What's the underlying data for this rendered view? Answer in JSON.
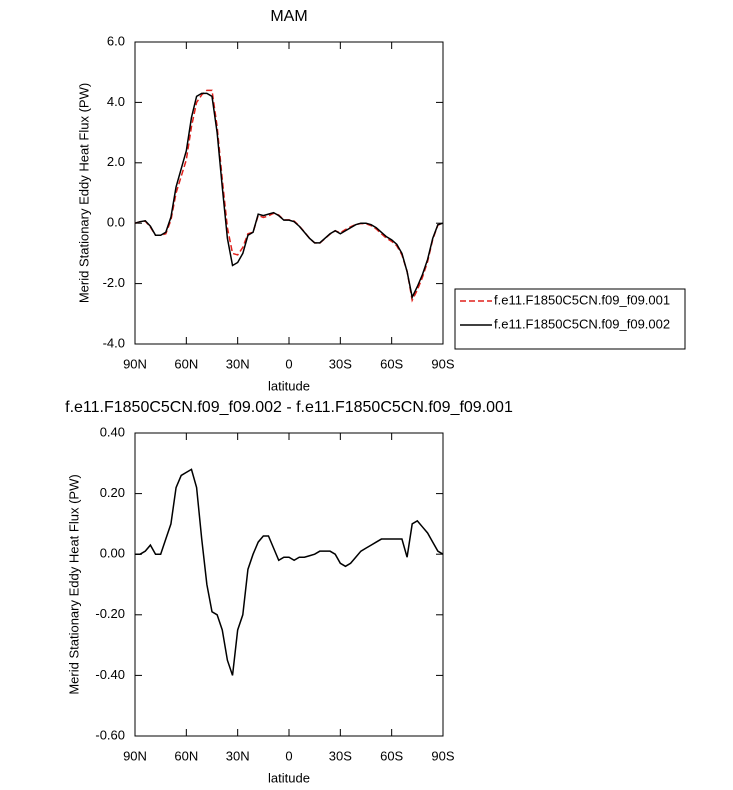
{
  "chart_data": [
    {
      "type": "line",
      "title": "MAM",
      "xlabel": "latitude",
      "ylabel": "Merid Stationary Eddy Heat Flux (PW)",
      "x": [
        90,
        87,
        84,
        81,
        78,
        75,
        72,
        69,
        66,
        63,
        60,
        57,
        54,
        51,
        48,
        45,
        42,
        39,
        36,
        33,
        30,
        27,
        24,
        21,
        18,
        15,
        12,
        9,
        6,
        3,
        0,
        -3,
        -6,
        -9,
        -12,
        -15,
        -18,
        -21,
        -24,
        -27,
        -30,
        -33,
        -36,
        -39,
        -42,
        -45,
        -48,
        -51,
        -54,
        -57,
        -60,
        -63,
        -66,
        -69,
        -72,
        -75,
        -78,
        -81,
        -84,
        -87,
        -90
      ],
      "xlim": [
        90,
        -90
      ],
      "xticks": [
        {
          "value": 90,
          "label": "90N"
        },
        {
          "value": 60,
          "label": "60N"
        },
        {
          "value": 30,
          "label": "30N"
        },
        0,
        {
          "value": -30,
          "label": "30S"
        },
        {
          "value": -60,
          "label": "60S"
        },
        {
          "value": -90,
          "label": "90S"
        }
      ],
      "ylim": [
        -4,
        6
      ],
      "yticks": [
        {
          "value": -4,
          "label": "-4.0"
        },
        {
          "value": -2,
          "label": "-2.0"
        },
        {
          "value": 0,
          "label": "0.0"
        },
        {
          "value": 2,
          "label": "2.0"
        },
        {
          "value": 4,
          "label": "4.0"
        },
        {
          "value": 6,
          "label": "6.0"
        }
      ],
      "legend": "right",
      "series": [
        {
          "name": "f.e11.F1850C5CN.f09_f09.001",
          "color": "#e0201b",
          "dash": true,
          "values": [
            0,
            0.05,
            0.07,
            -0.13,
            -0.4,
            -0.4,
            -0.35,
            0.1,
            1.0,
            1.55,
            2.1,
            3.2,
            4.0,
            4.25,
            4.4,
            4.4,
            3.2,
            1.45,
            -0.15,
            -1.0,
            -1.05,
            -0.8,
            -0.35,
            -0.3,
            0.26,
            0.19,
            0.24,
            0.33,
            0.27,
            0.11,
            0.11,
            0.07,
            -0.09,
            -0.29,
            -0.5,
            -0.65,
            -0.66,
            -0.51,
            -0.36,
            -0.25,
            -0.32,
            -0.21,
            -0.12,
            -0.04,
            -0.01,
            -0.02,
            -0.08,
            -0.19,
            -0.35,
            -0.5,
            -0.6,
            -0.75,
            -1.05,
            -1.59,
            -2.55,
            -2.21,
            -1.79,
            -1.27,
            -0.54,
            -0.06,
            0
          ]
        },
        {
          "name": "f.e11.F1850C5CN.f09_f09.002",
          "color": "#000000",
          "dash": false,
          "values": [
            0,
            0.05,
            0.08,
            -0.1,
            -0.4,
            -0.4,
            -0.3,
            0.2,
            1.2,
            1.8,
            2.4,
            3.5,
            4.2,
            4.3,
            4.3,
            4.2,
            3.0,
            1.2,
            -0.5,
            -1.4,
            -1.3,
            -1.0,
            -0.4,
            -0.3,
            0.3,
            0.25,
            0.3,
            0.35,
            0.25,
            0.1,
            0.1,
            0.05,
            -0.1,
            -0.3,
            -0.5,
            -0.65,
            -0.65,
            -0.5,
            -0.35,
            -0.25,
            -0.35,
            -0.25,
            -0.15,
            -0.05,
            0.0,
            0.0,
            -0.05,
            -0.15,
            -0.3,
            -0.45,
            -0.55,
            -0.7,
            -1.0,
            -1.6,
            -2.45,
            -2.1,
            -1.7,
            -1.2,
            -0.5,
            -0.05,
            0
          ]
        }
      ]
    },
    {
      "type": "line",
      "title": "f.e11.F1850C5CN.f09_f09.002 - f.e11.F1850C5CN.f09_f09.001",
      "xlabel": "latitude",
      "ylabel": "Merid Stationary Eddy Heat Flux (PW)",
      "x": [
        90,
        87,
        84,
        81,
        78,
        75,
        72,
        69,
        66,
        63,
        60,
        57,
        54,
        51,
        48,
        45,
        42,
        39,
        36,
        33,
        30,
        27,
        24,
        21,
        18,
        15,
        12,
        9,
        6,
        3,
        0,
        -3,
        -6,
        -9,
        -12,
        -15,
        -18,
        -21,
        -24,
        -27,
        -30,
        -33,
        -36,
        -39,
        -42,
        -45,
        -48,
        -51,
        -54,
        -57,
        -60,
        -63,
        -66,
        -69,
        -72,
        -75,
        -78,
        -81,
        -84,
        -87,
        -90
      ],
      "xlim": [
        90,
        -90
      ],
      "xticks": [
        {
          "value": 90,
          "label": "90N"
        },
        {
          "value": 60,
          "label": "60N"
        },
        {
          "value": 30,
          "label": "30N"
        },
        0,
        {
          "value": -30,
          "label": "30S"
        },
        {
          "value": -60,
          "label": "60S"
        },
        {
          "value": -90,
          "label": "90S"
        }
      ],
      "ylim": [
        -0.6,
        0.4
      ],
      "yticks": [
        {
          "value": -0.6,
          "label": "-0.60"
        },
        {
          "value": -0.4,
          "label": "-0.40"
        },
        {
          "value": -0.2,
          "label": "-0.20"
        },
        {
          "value": 0,
          "label": "0.00"
        },
        {
          "value": 0.2,
          "label": "0.20"
        },
        {
          "value": 0.4,
          "label": "0.40"
        }
      ],
      "series": [
        {
          "color": "#000000",
          "dash": false,
          "values": [
            0,
            0,
            0.01,
            0.03,
            0,
            0,
            0.05,
            0.1,
            0.22,
            0.26,
            0.27,
            0.28,
            0.22,
            0.05,
            -0.1,
            -0.19,
            -0.2,
            -0.25,
            -0.35,
            -0.4,
            -0.25,
            -0.2,
            -0.05,
            0,
            0.04,
            0.06,
            0.06,
            0.02,
            -0.02,
            -0.01,
            -0.01,
            -0.02,
            -0.01,
            -0.01,
            -0.005,
            0,
            0.01,
            0.01,
            0.01,
            0,
            -0.03,
            -0.04,
            -0.03,
            -0.01,
            0.01,
            0.02,
            0.03,
            0.04,
            0.05,
            0.05,
            0.05,
            0.05,
            0.05,
            -0.01,
            0.1,
            0.11,
            0.09,
            0.07,
            0.04,
            0.01,
            0
          ]
        }
      ]
    }
  ]
}
